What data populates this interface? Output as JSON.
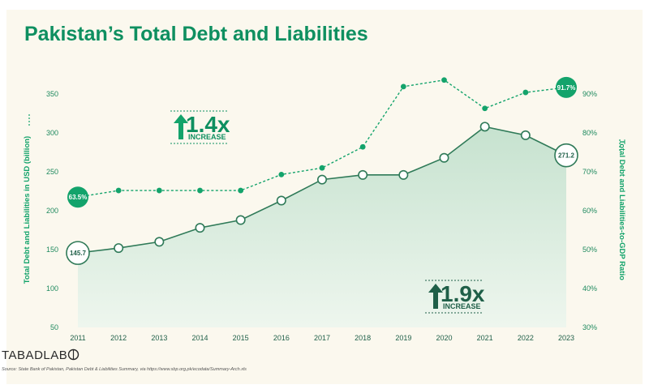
{
  "title": "Pakistan’s Total Debt and Liabilities",
  "chart_data": {
    "type": "area+line",
    "categories": [
      "2011",
      "2012",
      "2013",
      "2014",
      "2015",
      "2016",
      "2017",
      "2018",
      "2019",
      "2020",
      "2021",
      "2022",
      "2023"
    ],
    "series": [
      {
        "axis": "left",
        "style": "area",
        "values": [
          145.7,
          152,
          160,
          178,
          188,
          213,
          240,
          246,
          246,
          268,
          308,
          297,
          271.2
        ]
      },
      {
        "axis": "right",
        "style": "dashed-line",
        "values": [
          63.5,
          65.2,
          65.2,
          65.2,
          65.2,
          69.3,
          71.0,
          76.4,
          91.9,
          93.6,
          86.3,
          90.4,
          91.7
        ]
      }
    ],
    "data_labels": {
      "first_left": "145.7",
      "last_left": "271.2",
      "first_right": "63.5%",
      "last_right": "91.7%"
    },
    "ylabel": "Total Debt and Liabilities in USD (billion)",
    "ylabel_right": "Total Debt and Liabilities-to-GDP Ratio",
    "ylim": [
      50,
      350
    ],
    "ylim_right": [
      30,
      90
    ],
    "yticks": [
      "350",
      "300",
      "250",
      "200",
      "150",
      "100",
      "50"
    ],
    "yticks_right": [
      "90%",
      "80%",
      "70%",
      "60%",
      "50%",
      "40%",
      "30%"
    ],
    "annotations": [
      {
        "text": "1.4x",
        "sub": "INCREASE"
      },
      {
        "text": "1.9x",
        "sub": "INCREASE"
      }
    ],
    "colors": {
      "area_top": "#cfe6d6",
      "area_bottom": "#eaf4ec",
      "area_line": "#2f7a58",
      "ratio_line": "#13a36b",
      "title": "#0e8f60"
    }
  },
  "logo": "TABADLAB",
  "source": "Source: State Bank of Pakistan, Pakistan Debt & Liabilities Summary, via https://www.sbp.org.pk/ecodata/Summary-Arch.xls"
}
